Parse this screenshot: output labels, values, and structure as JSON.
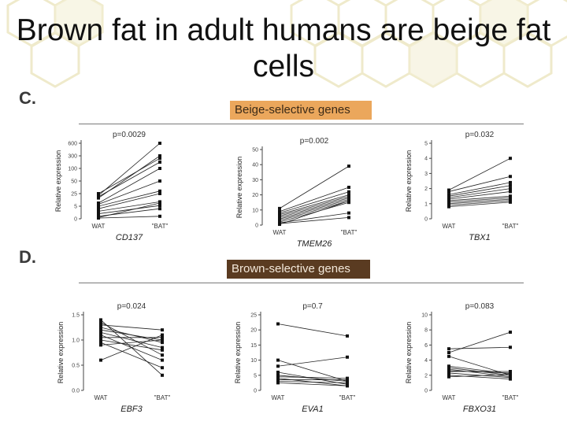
{
  "slide": {
    "title": "Brown fat in adult humans are beige fat cells",
    "section_c": "C.",
    "section_d": "D.",
    "beige_banner": "Beige-selective genes",
    "brown_banner": "Brown-selective genes"
  },
  "colors": {
    "beige_banner": "#eba75c",
    "brown_banner": "#5a3b21",
    "hex_pattern": "#f3efd0"
  },
  "chart_data": [
    {
      "type": "line",
      "gene": "CD137",
      "pvalue": "p=0.0029",
      "ylabel": "Relative expression",
      "categories": [
        "WAT",
        "\"BAT\""
      ],
      "y_scale": "broken",
      "yticks": [
        "0",
        "5",
        "25",
        "50",
        "100",
        "300",
        "600"
      ],
      "ytick_values": [
        0,
        5,
        25,
        50,
        100,
        300,
        600
      ],
      "pairs": [
        [
          22,
          600
        ],
        [
          18,
          300
        ],
        [
          25,
          260
        ],
        [
          20,
          200
        ],
        [
          10,
          100
        ],
        [
          8,
          50
        ],
        [
          5,
          30
        ],
        [
          3,
          12
        ],
        [
          2,
          6
        ],
        [
          1,
          4
        ],
        [
          0.5,
          10
        ],
        [
          0.3,
          1
        ],
        [
          4,
          25
        ]
      ]
    },
    {
      "type": "line",
      "gene": "TMEM26",
      "pvalue": "p=0.002",
      "ylabel": "Relative expression",
      "categories": [
        "WAT",
        "\"BAT\""
      ],
      "ylim": [
        0,
        50
      ],
      "yticks": [
        "0",
        "10",
        "20",
        "30",
        "40",
        "50"
      ],
      "ytick_values": [
        0,
        10,
        20,
        30,
        40,
        50
      ],
      "pairs": [
        [
          11,
          39
        ],
        [
          9,
          25
        ],
        [
          8,
          22
        ],
        [
          7,
          20
        ],
        [
          6,
          19
        ],
        [
          5,
          18
        ],
        [
          4,
          17
        ],
        [
          3,
          16
        ],
        [
          2,
          15
        ],
        [
          1.5,
          8
        ],
        [
          1,
          5
        ],
        [
          0.5,
          16
        ]
      ]
    },
    {
      "type": "line",
      "gene": "TBX1",
      "pvalue": "p=0.032",
      "ylabel": "Relative expression",
      "categories": [
        "WAT",
        "\"BAT\""
      ],
      "ylim": [
        0,
        5
      ],
      "yticks": [
        "0",
        "1",
        "2",
        "3",
        "4",
        "5"
      ],
      "ytick_values": [
        0,
        1,
        2,
        3,
        4,
        5
      ],
      "pairs": [
        [
          1.9,
          4.0
        ],
        [
          1.8,
          2.8
        ],
        [
          1.6,
          2.4
        ],
        [
          1.5,
          2.2
        ],
        [
          1.4,
          2.0
        ],
        [
          1.3,
          1.8
        ],
        [
          1.2,
          1.5
        ],
        [
          1.1,
          1.4
        ],
        [
          1.0,
          1.3
        ],
        [
          0.9,
          1.2
        ],
        [
          0.8,
          1.1
        ]
      ]
    },
    {
      "type": "line",
      "gene": "EBF3",
      "pvalue": "p=0.024",
      "ylabel": "Relative expression",
      "categories": [
        "WAT",
        "\"BAT\""
      ],
      "ylim": [
        0,
        1.5
      ],
      "yticks": [
        "0.0",
        "0.5",
        "1.0",
        "1.5"
      ],
      "ytick_values": [
        0,
        0.5,
        1.0,
        1.5
      ],
      "pairs": [
        [
          1.4,
          0.3
        ],
        [
          1.35,
          0.7
        ],
        [
          1.3,
          1.2
        ],
        [
          1.25,
          0.95
        ],
        [
          1.2,
          1.0
        ],
        [
          1.15,
          0.85
        ],
        [
          1.1,
          0.6
        ],
        [
          1.05,
          1.05
        ],
        [
          1.0,
          0.8
        ],
        [
          0.95,
          0.45
        ],
        [
          0.9,
          1.0
        ],
        [
          0.6,
          1.1
        ]
      ]
    },
    {
      "type": "line",
      "gene": "EVA1",
      "pvalue": "p=0.7",
      "ylabel": "Relative expression",
      "categories": [
        "WAT",
        "\"BAT\""
      ],
      "ylim": [
        0,
        25
      ],
      "yticks": [
        "0",
        "5",
        "10",
        "15",
        "20",
        "25"
      ],
      "ytick_values": [
        0,
        5,
        10,
        15,
        20,
        25
      ],
      "pairs": [
        [
          22,
          18
        ],
        [
          10,
          3
        ],
        [
          8,
          11
        ],
        [
          6,
          2
        ],
        [
          5,
          3
        ],
        [
          4.5,
          4
        ],
        [
          4,
          1.5
        ],
        [
          3.5,
          3.5
        ],
        [
          3,
          2.5
        ],
        [
          2.5,
          1.5
        ]
      ]
    },
    {
      "type": "line",
      "gene": "FBXO31",
      "pvalue": "p=0.083",
      "ylabel": "Relative expression",
      "categories": [
        "WAT",
        "\"BAT\""
      ],
      "ylim": [
        0,
        10
      ],
      "yticks": [
        "0",
        "2",
        "4",
        "6",
        "8",
        "10"
      ],
      "ytick_values": [
        0,
        2,
        4,
        6,
        8,
        10
      ],
      "pairs": [
        [
          5.5,
          5.7
        ],
        [
          5.0,
          7.7
        ],
        [
          4.5,
          2.0
        ],
        [
          3.2,
          2.2
        ],
        [
          3.0,
          2.0
        ],
        [
          2.8,
          1.8
        ],
        [
          2.6,
          2.3
        ],
        [
          2.5,
          2.5
        ],
        [
          2.3,
          1.7
        ],
        [
          2.0,
          1.5
        ],
        [
          1.8,
          2.1
        ]
      ]
    }
  ]
}
